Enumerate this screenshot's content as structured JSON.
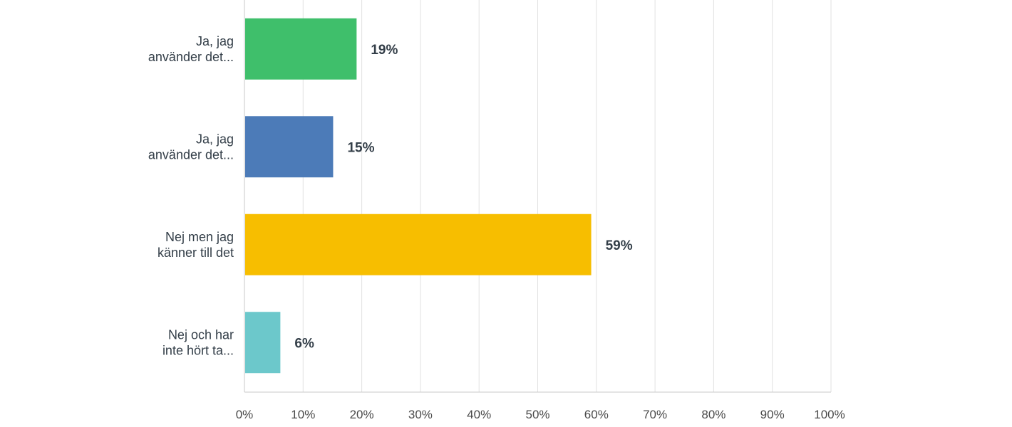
{
  "chart_data": {
    "type": "bar",
    "orientation": "horizontal",
    "categories": [
      [
        "Ja, jag",
        "använder det..."
      ],
      [
        "Ja, jag",
        "använder det..."
      ],
      [
        "Nej men jag",
        "känner till det"
      ],
      [
        "Nej och har",
        "inte hört ta..."
      ]
    ],
    "values": [
      19,
      15,
      59,
      6
    ],
    "value_labels": [
      "19%",
      "15%",
      "59%",
      "6%"
    ],
    "colors": [
      "#3fbf6b",
      "#4c7bb8",
      "#f7be00",
      "#6cc8cb"
    ],
    "xlim": [
      0,
      100
    ],
    "x_ticks": [
      0,
      10,
      20,
      30,
      40,
      50,
      60,
      70,
      80,
      90,
      100
    ],
    "x_tick_labels": [
      "0%",
      "10%",
      "20%",
      "30%",
      "40%",
      "50%",
      "60%",
      "70%",
      "80%",
      "90%",
      "100%"
    ],
    "grid": true,
    "legend": "none",
    "title": "",
    "xlabel": "",
    "ylabel": ""
  }
}
